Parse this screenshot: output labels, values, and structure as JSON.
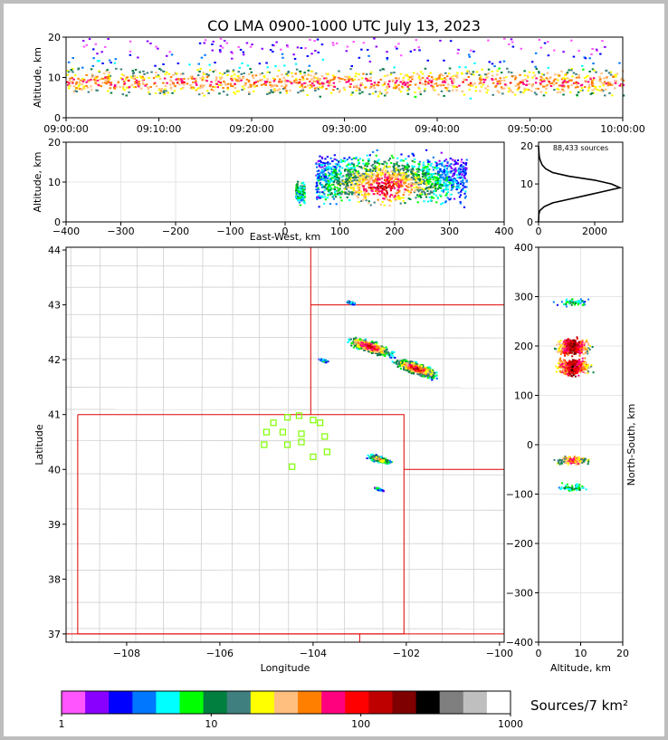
{
  "title": "CO LMA 0900-1000 UTC July 13, 2023",
  "colorbar": {
    "label": "Sources/7 km²",
    "colors": [
      "#ff55ff",
      "#8a00ff",
      "#0000ff",
      "#0077ff",
      "#00ffff",
      "#00ff00",
      "#007f3f",
      "#3f7f7f",
      "#ffff00",
      "#ffbf7f",
      "#ff7f00",
      "#ff007f",
      "#ff0000",
      "#bf0000",
      "#7f0000",
      "#000000",
      "#7f7f7f",
      "#bfbfbf",
      "#ffffff"
    ],
    "ticks": [
      "1",
      "10",
      "100",
      "1000"
    ]
  },
  "chart_data": [
    {
      "id": "time-height",
      "type": "heatmap",
      "ylabel": "Altitude, km",
      "xlim": [
        "09:00:00",
        "10:00:00"
      ],
      "ylim": [
        0,
        20
      ],
      "xticks": [
        "09:00:00",
        "09:10:00",
        "09:20:00",
        "09:30:00",
        "09:40:00",
        "09:50:00",
        "10:00:00"
      ],
      "yticks": [
        "0",
        "10",
        "20"
      ],
      "source_band_km": [
        3,
        20
      ],
      "peak_altitude_km": 9
    },
    {
      "id": "ew-height",
      "type": "heatmap",
      "xlabel": "East-West, km",
      "ylabel": "Altitude, km",
      "xlim": [
        -400,
        400
      ],
      "ylim": [
        0,
        20
      ],
      "xticks": [
        "−400",
        "−300",
        "−200",
        "−100",
        "0",
        "100",
        "200",
        "300",
        "400"
      ],
      "yticks": [
        "0",
        "10",
        "20"
      ],
      "clusters": [
        {
          "x_range": [
            18,
            35
          ],
          "z_range": [
            3,
            12
          ],
          "level": "low"
        },
        {
          "x_range": [
            55,
            330
          ],
          "z_range": [
            2,
            20
          ],
          "level": "high",
          "core_x": [
            100,
            260
          ]
        }
      ]
    },
    {
      "id": "altitude-histogram",
      "type": "line",
      "annotation": "88,433 sources",
      "xlim": [
        0,
        3000
      ],
      "ylim": [
        0,
        21
      ],
      "xticks": [
        "0",
        "2000"
      ],
      "yticks": [
        "0",
        "10",
        "20"
      ],
      "points": [
        [
          0,
          0
        ],
        [
          10,
          2
        ],
        [
          50,
          3
        ],
        [
          200,
          4
        ],
        [
          500,
          5
        ],
        [
          1100,
          6
        ],
        [
          1700,
          7
        ],
        [
          2300,
          8
        ],
        [
          2900,
          9
        ],
        [
          2600,
          10
        ],
        [
          2000,
          11
        ],
        [
          1100,
          12
        ],
        [
          500,
          13
        ],
        [
          250,
          14
        ],
        [
          130,
          15
        ],
        [
          70,
          16
        ],
        [
          30,
          17
        ],
        [
          15,
          18
        ],
        [
          5,
          19
        ],
        [
          0,
          20
        ]
      ]
    },
    {
      "id": "plan-view",
      "type": "heatmap",
      "xlabel": "Longitude",
      "ylabel": "Latitude",
      "xlim": [
        -109.3,
        -99.9
      ],
      "ylim": [
        36.85,
        44.05
      ],
      "xticks": [
        "−108",
        "−106",
        "−104",
        "−102",
        "−100"
      ],
      "yticks": [
        "37",
        "38",
        "39",
        "40",
        "41",
        "42",
        "43",
        "44"
      ],
      "storms": [
        {
          "lon": -102.8,
          "lat": 42.25,
          "level": "high"
        },
        {
          "lon": -101.8,
          "lat": 41.85,
          "level": "high"
        },
        {
          "lon": -102.6,
          "lat": 40.2,
          "level": "medium"
        },
        {
          "lon": -102.6,
          "lat": 39.65,
          "level": "low"
        },
        {
          "lon": -103.8,
          "lat": 42.0,
          "level": "low"
        },
        {
          "lon": -103.2,
          "lat": 43.05,
          "level": "low"
        }
      ],
      "stations": [
        [
          -104.85,
          40.85
        ],
        [
          -104.55,
          40.95
        ],
        [
          -104.3,
          40.98
        ],
        [
          -104.0,
          40.9
        ],
        [
          -103.85,
          40.85
        ],
        [
          -105.0,
          40.68
        ],
        [
          -104.65,
          40.68
        ],
        [
          -104.25,
          40.65
        ],
        [
          -103.75,
          40.6
        ],
        [
          -105.05,
          40.45
        ],
        [
          -104.55,
          40.45
        ],
        [
          -104.25,
          40.5
        ],
        [
          -103.7,
          40.32
        ],
        [
          -104.0,
          40.23
        ],
        [
          -104.45,
          40.05
        ]
      ]
    },
    {
      "id": "ns-height",
      "type": "heatmap",
      "xlabel": "Altitude, km",
      "ylabel": "North-South, km",
      "xlim": [
        0,
        20
      ],
      "ylim": [
        -400,
        400
      ],
      "xticks": [
        "0",
        "10",
        "20"
      ],
      "yticks": [
        "−400",
        "−300",
        "−200",
        "−100",
        "0",
        "100",
        "200",
        "300",
        "400"
      ],
      "clusters": [
        {
          "y": 200,
          "level": "high"
        },
        {
          "y": 160,
          "level": "high"
        },
        {
          "y": -30,
          "level": "medium"
        },
        {
          "y": -85,
          "level": "low"
        },
        {
          "y": 290,
          "level": "low"
        }
      ]
    }
  ]
}
